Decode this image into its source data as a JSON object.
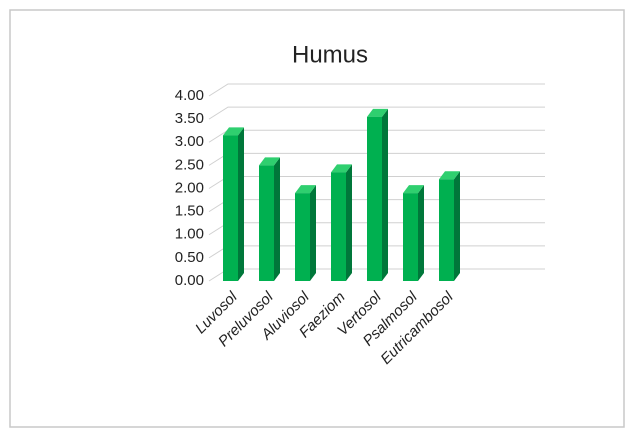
{
  "chart_data": {
    "type": "bar3d",
    "title": "Humus",
    "categories": [
      "Luvosol",
      "Preluvosol",
      "Aluviosol",
      "Faeziom",
      "Vertosol",
      "Psalmosol",
      "Eutricambosol"
    ],
    "values": [
      3.15,
      2.5,
      1.9,
      2.35,
      3.55,
      1.9,
      2.2
    ],
    "color": "#00b050",
    "ylim": [
      0,
      4
    ],
    "yticks": [
      {
        "value": 0,
        "label": "0.00"
      },
      {
        "value": 0.5,
        "label": "0.50"
      },
      {
        "value": 1,
        "label": "1.00"
      },
      {
        "value": 1.5,
        "label": "1.50"
      },
      {
        "value": 2,
        "label": "2.00"
      },
      {
        "value": 2.5,
        "label": "2.50"
      },
      {
        "value": 3,
        "label": "3.00"
      },
      {
        "value": 3.5,
        "label": "3.50"
      },
      {
        "value": 4,
        "label": "4.00"
      }
    ],
    "grid": true
  }
}
